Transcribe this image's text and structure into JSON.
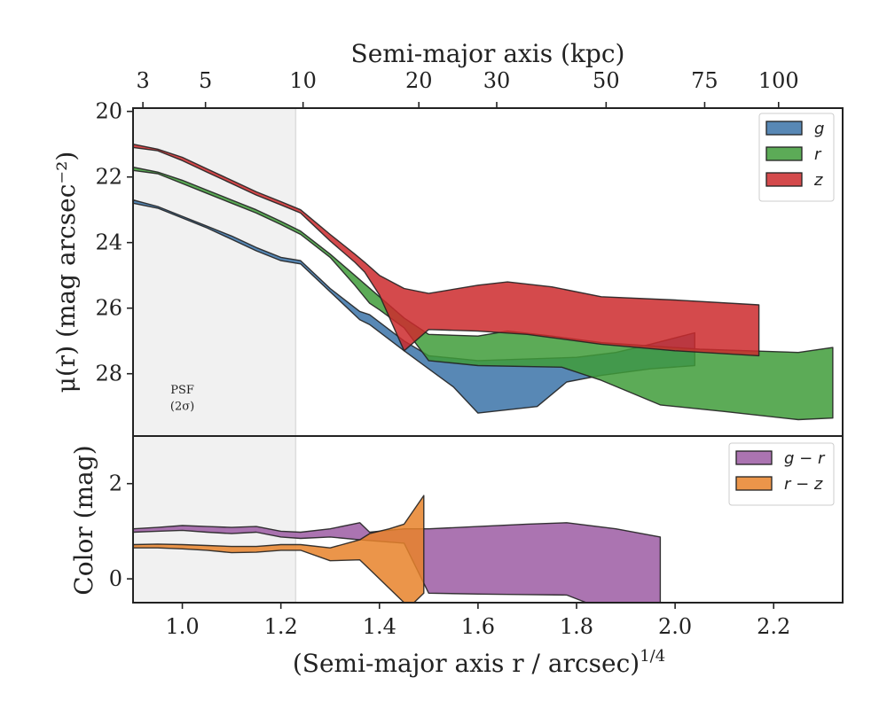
{
  "chart_data": [
    {
      "type": "area",
      "panel": "surface-brightness",
      "ylabel": "μ(r) (mag arcsec⁻²)",
      "top_xlabel": "Semi-major axis (kpc)",
      "top_ticks": [
        {
          "label": "3",
          "x": 0.92
        },
        {
          "label": "5",
          "x": 1.047
        },
        {
          "label": "10",
          "x": 1.245
        },
        {
          "label": "20",
          "x": 1.48
        },
        {
          "label": "30",
          "x": 1.638
        },
        {
          "label": "50",
          "x": 1.86
        },
        {
          "label": "75",
          "x": 2.06
        },
        {
          "label": "100",
          "x": 2.21
        }
      ],
      "xlim": [
        0.9,
        2.34
      ],
      "ylim": [
        29.9,
        19.9
      ],
      "y_ticks": [
        20,
        22,
        24,
        26,
        28
      ],
      "y_tick_labels": [
        "20",
        "22",
        "24",
        "26",
        "28"
      ],
      "psf_shade": {
        "x_range": [
          0.9,
          1.23
        ],
        "label_line1": "PSF",
        "label_line2": "(2σ)",
        "label_x": 1.0,
        "label_y1": 28.6,
        "label_y2": 29.1
      },
      "legend": {
        "position": "upper right",
        "entries": [
          {
            "label": "g",
            "color": "#3B73A8"
          },
          {
            "label": "r",
            "color": "#3F9C3A"
          },
          {
            "label": "z",
            "color": "#CC2A2D"
          }
        ]
      },
      "series": [
        {
          "name": "g",
          "color": "#3B73A8",
          "alpha": 0.85,
          "upper": [
            [
              0.9,
              22.7
            ],
            [
              0.95,
              22.9
            ],
            [
              1.0,
              23.2
            ],
            [
              1.05,
              23.5
            ],
            [
              1.1,
              23.8
            ],
            [
              1.15,
              24.15
            ],
            [
              1.2,
              24.45
            ],
            [
              1.24,
              24.55
            ],
            [
              1.3,
              25.4
            ],
            [
              1.36,
              26.1
            ],
            [
              1.38,
              26.2
            ],
            [
              1.45,
              27.0
            ],
            [
              1.5,
              27.45
            ],
            [
              1.6,
              27.6
            ],
            [
              1.7,
              27.55
            ],
            [
              1.8,
              27.5
            ],
            [
              1.88,
              27.35
            ],
            [
              1.95,
              27.1
            ],
            [
              2.04,
              26.75
            ]
          ],
          "lower": [
            [
              0.9,
              22.8
            ],
            [
              0.95,
              22.95
            ],
            [
              1.0,
              23.25
            ],
            [
              1.05,
              23.55
            ],
            [
              1.1,
              23.9
            ],
            [
              1.15,
              24.25
            ],
            [
              1.2,
              24.55
            ],
            [
              1.24,
              24.65
            ],
            [
              1.3,
              25.5
            ],
            [
              1.36,
              26.35
            ],
            [
              1.38,
              26.5
            ],
            [
              1.45,
              27.3
            ],
            [
              1.5,
              27.85
            ],
            [
              1.55,
              28.4
            ],
            [
              1.6,
              29.2
            ],
            [
              1.72,
              29.0
            ],
            [
              1.78,
              28.25
            ],
            [
              1.85,
              28.05
            ],
            [
              1.95,
              27.85
            ],
            [
              2.04,
              27.75
            ]
          ]
        },
        {
          "name": "r",
          "color": "#3F9C3A",
          "alpha": 0.85,
          "upper": [
            [
              0.9,
              21.7
            ],
            [
              0.95,
              21.85
            ],
            [
              1.0,
              22.1
            ],
            [
              1.05,
              22.4
            ],
            [
              1.1,
              22.7
            ],
            [
              1.15,
              23.0
            ],
            [
              1.2,
              23.35
            ],
            [
              1.24,
              23.65
            ],
            [
              1.3,
              24.35
            ],
            [
              1.35,
              25.0
            ],
            [
              1.4,
              25.65
            ],
            [
              1.45,
              26.3
            ],
            [
              1.5,
              26.8
            ],
            [
              1.6,
              26.85
            ],
            [
              1.66,
              26.7
            ],
            [
              1.75,
              26.85
            ],
            [
              1.85,
              27.05
            ],
            [
              1.95,
              27.15
            ],
            [
              2.05,
              27.25
            ],
            [
              2.15,
              27.3
            ],
            [
              2.25,
              27.35
            ],
            [
              2.32,
              27.2
            ]
          ],
          "lower": [
            [
              0.9,
              21.8
            ],
            [
              0.95,
              21.9
            ],
            [
              1.0,
              22.2
            ],
            [
              1.05,
              22.5
            ],
            [
              1.1,
              22.8
            ],
            [
              1.15,
              23.1
            ],
            [
              1.2,
              23.45
            ],
            [
              1.24,
              23.75
            ],
            [
              1.3,
              24.45
            ],
            [
              1.35,
              25.3
            ],
            [
              1.38,
              25.85
            ],
            [
              1.4,
              26.05
            ],
            [
              1.45,
              26.6
            ],
            [
              1.5,
              27.6
            ],
            [
              1.6,
              27.75
            ],
            [
              1.77,
              27.8
            ],
            [
              1.85,
              28.2
            ],
            [
              1.97,
              28.95
            ],
            [
              2.1,
              29.15
            ],
            [
              2.25,
              29.4
            ],
            [
              2.32,
              29.35
            ]
          ]
        },
        {
          "name": "z",
          "color": "#CC2A2D",
          "alpha": 0.85,
          "upper": [
            [
              0.9,
              21.0
            ],
            [
              0.95,
              21.15
            ],
            [
              1.0,
              21.4
            ],
            [
              1.05,
              21.75
            ],
            [
              1.1,
              22.1
            ],
            [
              1.15,
              22.45
            ],
            [
              1.2,
              22.75
            ],
            [
              1.24,
              23.0
            ],
            [
              1.3,
              23.75
            ],
            [
              1.35,
              24.35
            ],
            [
              1.37,
              24.6
            ],
            [
              1.4,
              25.0
            ],
            [
              1.45,
              25.4
            ],
            [
              1.5,
              25.55
            ],
            [
              1.6,
              25.3
            ],
            [
              1.66,
              25.2
            ],
            [
              1.75,
              25.35
            ],
            [
              1.85,
              25.65
            ],
            [
              2.0,
              25.75
            ],
            [
              2.17,
              25.9
            ]
          ],
          "lower": [
            [
              0.9,
              21.1
            ],
            [
              0.95,
              21.2
            ],
            [
              1.0,
              21.5
            ],
            [
              1.05,
              21.85
            ],
            [
              1.1,
              22.2
            ],
            [
              1.15,
              22.55
            ],
            [
              1.2,
              22.85
            ],
            [
              1.24,
              23.1
            ],
            [
              1.3,
              23.95
            ],
            [
              1.35,
              24.6
            ],
            [
              1.37,
              24.9
            ],
            [
              1.4,
              25.6
            ],
            [
              1.45,
              27.3
            ],
            [
              1.5,
              26.65
            ],
            [
              1.6,
              26.7
            ],
            [
              1.7,
              26.8
            ],
            [
              1.85,
              27.1
            ],
            [
              2.0,
              27.3
            ],
            [
              2.17,
              27.45
            ]
          ]
        }
      ]
    },
    {
      "type": "area",
      "panel": "color",
      "xlabel": "(Semi-major axis r / arcsec)",
      "xlabel_exponent": "1/4",
      "ylabel": "Color (mag)",
      "xlim": [
        0.9,
        2.34
      ],
      "ylim": [
        -0.5,
        3.0
      ],
      "x_ticks": [
        1.0,
        1.2,
        1.4,
        1.6,
        1.8,
        2.0,
        2.2
      ],
      "x_tick_labels": [
        "1.0",
        "1.2",
        "1.4",
        "1.6",
        "1.8",
        "2.0",
        "2.2"
      ],
      "y_ticks": [
        0,
        2
      ],
      "y_tick_labels": [
        "0",
        "2"
      ],
      "legend": {
        "position": "upper right",
        "entries": [
          {
            "label": "g − r",
            "color": "#9C5CA3"
          },
          {
            "label": "r − z",
            "color": "#E8832A"
          }
        ]
      },
      "series": [
        {
          "name": "g − r",
          "color": "#9C5CA3",
          "alpha": 0.85,
          "upper": [
            [
              0.9,
              1.05
            ],
            [
              0.95,
              1.08
            ],
            [
              1.0,
              1.12
            ],
            [
              1.05,
              1.1
            ],
            [
              1.1,
              1.08
            ],
            [
              1.15,
              1.1
            ],
            [
              1.2,
              1.0
            ],
            [
              1.24,
              0.98
            ],
            [
              1.3,
              1.05
            ],
            [
              1.36,
              1.18
            ],
            [
              1.38,
              0.98
            ],
            [
              1.45,
              1.05
            ],
            [
              1.5,
              1.05
            ],
            [
              1.6,
              1.1
            ],
            [
              1.7,
              1.15
            ],
            [
              1.78,
              1.18
            ],
            [
              1.88,
              1.05
            ],
            [
              1.97,
              0.88
            ]
          ],
          "lower": [
            [
              0.9,
              0.98
            ],
            [
              0.95,
              1.0
            ],
            [
              1.0,
              1.02
            ],
            [
              1.05,
              0.98
            ],
            [
              1.1,
              0.95
            ],
            [
              1.15,
              0.98
            ],
            [
              1.2,
              0.88
            ],
            [
              1.24,
              0.85
            ],
            [
              1.3,
              0.88
            ],
            [
              1.36,
              0.82
            ],
            [
              1.45,
              0.75
            ],
            [
              1.5,
              -0.3
            ],
            [
              1.6,
              -0.32
            ],
            [
              1.7,
              -0.33
            ],
            [
              1.78,
              -0.34
            ],
            [
              1.82,
              -0.5
            ],
            [
              1.97,
              -0.5
            ]
          ]
        },
        {
          "name": "r − z",
          "color": "#E8832A",
          "alpha": 0.85,
          "upper": [
            [
              0.9,
              0.72
            ],
            [
              0.95,
              0.73
            ],
            [
              1.0,
              0.72
            ],
            [
              1.05,
              0.7
            ],
            [
              1.1,
              0.68
            ],
            [
              1.15,
              0.68
            ],
            [
              1.2,
              0.72
            ],
            [
              1.24,
              0.72
            ],
            [
              1.3,
              0.65
            ],
            [
              1.36,
              0.82
            ],
            [
              1.38,
              0.95
            ],
            [
              1.42,
              1.05
            ],
            [
              1.45,
              1.15
            ],
            [
              1.49,
              1.75
            ]
          ],
          "lower": [
            [
              0.9,
              0.65
            ],
            [
              0.95,
              0.65
            ],
            [
              1.0,
              0.63
            ],
            [
              1.05,
              0.6
            ],
            [
              1.1,
              0.55
            ],
            [
              1.15,
              0.56
            ],
            [
              1.2,
              0.6
            ],
            [
              1.24,
              0.6
            ],
            [
              1.3,
              0.38
            ],
            [
              1.36,
              0.4
            ],
            [
              1.38,
              0.2
            ],
            [
              1.42,
              -0.2
            ],
            [
              1.45,
              -0.5
            ],
            [
              1.47,
              -0.5
            ],
            [
              1.49,
              -0.3
            ]
          ]
        }
      ]
    }
  ]
}
